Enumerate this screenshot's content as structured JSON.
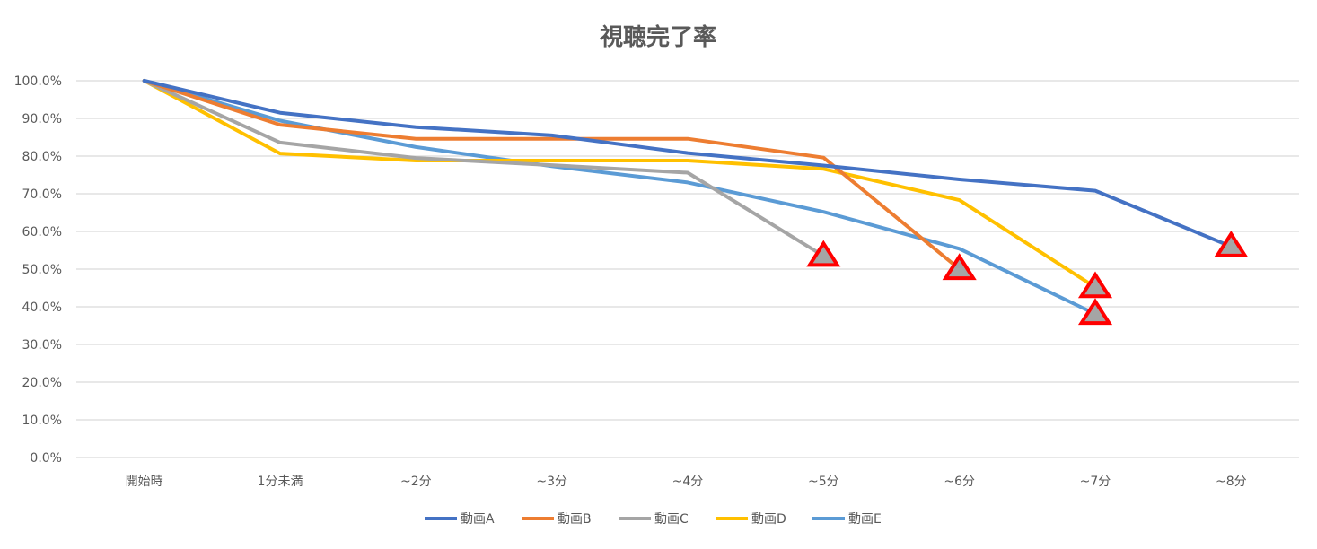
{
  "chart_data": {
    "type": "line",
    "title": "視聴完了率",
    "xlabel": "",
    "ylabel": "",
    "categories": [
      "開始時",
      "1分未満",
      "~2分",
      "~3分",
      "~4分",
      "~5分",
      "~6分",
      "~7分",
      "~8分"
    ],
    "ylim": [
      0,
      100
    ],
    "y_ticks": [
      "0.0%",
      "10.0%",
      "20.0%",
      "30.0%",
      "40.0%",
      "50.0%",
      "60.0%",
      "70.0%",
      "80.0%",
      "90.0%",
      "100.0%"
    ],
    "grid": "horizontal",
    "legend": "bottom",
    "series": [
      {
        "name": "動画A",
        "color": "#4472C4",
        "values": [
          100,
          91.5,
          87.7,
          85.5,
          80.8,
          77.5,
          73.8,
          70.8,
          56.0
        ]
      },
      {
        "name": "動画B",
        "color": "#ED7D31",
        "values": [
          100,
          88.3,
          84.6,
          84.6,
          84.6,
          79.6,
          50.0,
          null,
          null
        ]
      },
      {
        "name": "動画C",
        "color": "#A5A5A5",
        "values": [
          100,
          83.6,
          79.5,
          77.6,
          75.6,
          53.5,
          null,
          null,
          null
        ]
      },
      {
        "name": "動画D",
        "color": "#FFC000",
        "values": [
          100,
          80.7,
          78.8,
          78.8,
          78.8,
          76.6,
          68.3,
          45.2,
          null
        ]
      },
      {
        "name": "動画E",
        "color": "#5B9BD5",
        "values": [
          100,
          89.4,
          82.4,
          77.3,
          73.0,
          65.2,
          55.4,
          38.1,
          null
        ]
      }
    ],
    "markers": [
      {
        "series": "動画C",
        "category": "~5分",
        "value": 53.5,
        "shape": "triangle",
        "stroke": "#FF0000",
        "fill": "#A5A5A5"
      },
      {
        "series": "動画B",
        "category": "~6分",
        "value": 50.0,
        "shape": "triangle",
        "stroke": "#FF0000",
        "fill": "#A5A5A5"
      },
      {
        "series": "動画D",
        "category": "~7分",
        "value": 45.2,
        "shape": "triangle",
        "stroke": "#FF0000",
        "fill": "#A5A5A5"
      },
      {
        "series": "動画E",
        "category": "~7分",
        "value": 38.1,
        "shape": "triangle",
        "stroke": "#FF0000",
        "fill": "#A5A5A5"
      },
      {
        "series": "動画A",
        "category": "~8分",
        "value": 56.0,
        "shape": "triangle",
        "stroke": "#FF0000",
        "fill": "#A5A5A5"
      }
    ]
  }
}
